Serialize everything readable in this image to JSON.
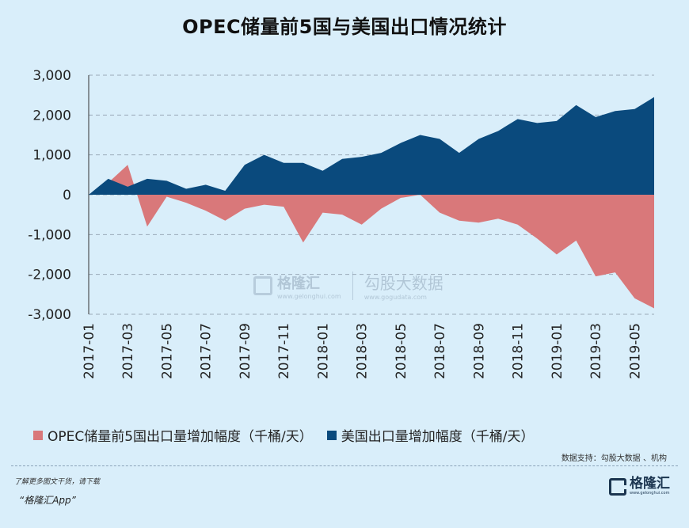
{
  "title": "OPEC储量前5国与美国出口情况统计",
  "chart_data": {
    "type": "area",
    "x": [
      "2017-01",
      "2017-02",
      "2017-03",
      "2017-04",
      "2017-05",
      "2017-06",
      "2017-07",
      "2017-08",
      "2017-09",
      "2017-10",
      "2017-11",
      "2017-12",
      "2018-01",
      "2018-02",
      "2018-03",
      "2018-04",
      "2018-05",
      "2018-06",
      "2018-07",
      "2018-08",
      "2018-09",
      "2018-10",
      "2018-11",
      "2018-12",
      "2019-01",
      "2019-02",
      "2019-03",
      "2019-04",
      "2019-05",
      "2019-06"
    ],
    "x_ticks": [
      "2017-01",
      "2017-03",
      "2017-05",
      "2017-07",
      "2017-09",
      "2017-11",
      "2018-01",
      "2018-03",
      "2018-05",
      "2018-07",
      "2018-09",
      "2018-11",
      "2019-01",
      "2019-03",
      "2019-05"
    ],
    "ylim": [
      -3000,
      3000
    ],
    "y_ticks": [
      "3,000",
      "2,000",
      "1,000",
      "0",
      "-1,000",
      "-2,000",
      "-3,000"
    ],
    "grid": "horizontal dashed",
    "legend_position": "bottom",
    "series": [
      {
        "name": "OPEC储量前5国出口量增加幅度（千桶/天）",
        "color": "#d9787a",
        "values": [
          0,
          300,
          750,
          -800,
          -50,
          -200,
          -400,
          -650,
          -350,
          -250,
          -300,
          -1200,
          -450,
          -500,
          -750,
          -350,
          -80,
          0,
          -450,
          -650,
          -700,
          -600,
          -750,
          -1100,
          -1500,
          -1150,
          -2050,
          -1950,
          -2600,
          -2850
        ]
      },
      {
        "name": "美国出口量增加幅度（千桶/天）",
        "color": "#0a4a7d",
        "values": [
          0,
          400,
          200,
          400,
          350,
          150,
          250,
          100,
          750,
          1000,
          800,
          800,
          600,
          900,
          950,
          1050,
          1300,
          1500,
          1400,
          1050,
          1400,
          1600,
          1900,
          1800,
          1850,
          2250,
          1950,
          2100,
          2150,
          2450
        ]
      }
    ]
  },
  "legend": {
    "opec": "OPEC储量前5国出口量增加幅度（千桶/天）",
    "us": "美国出口量增加幅度（千桶/天）"
  },
  "source": "数据支持：勾股大数据 、机构",
  "footer": {
    "promo_line1": "了解更多图文干货，请下载",
    "promo_line2": "“格隆汇App”",
    "brand_name": "格隆汇",
    "brand_url": "www.gelonghui.com"
  },
  "watermark": {
    "name1": "格隆汇",
    "url1": "www.gelonghui.com",
    "name2": "勾股大数据",
    "url2": "www.gogudata.com"
  }
}
